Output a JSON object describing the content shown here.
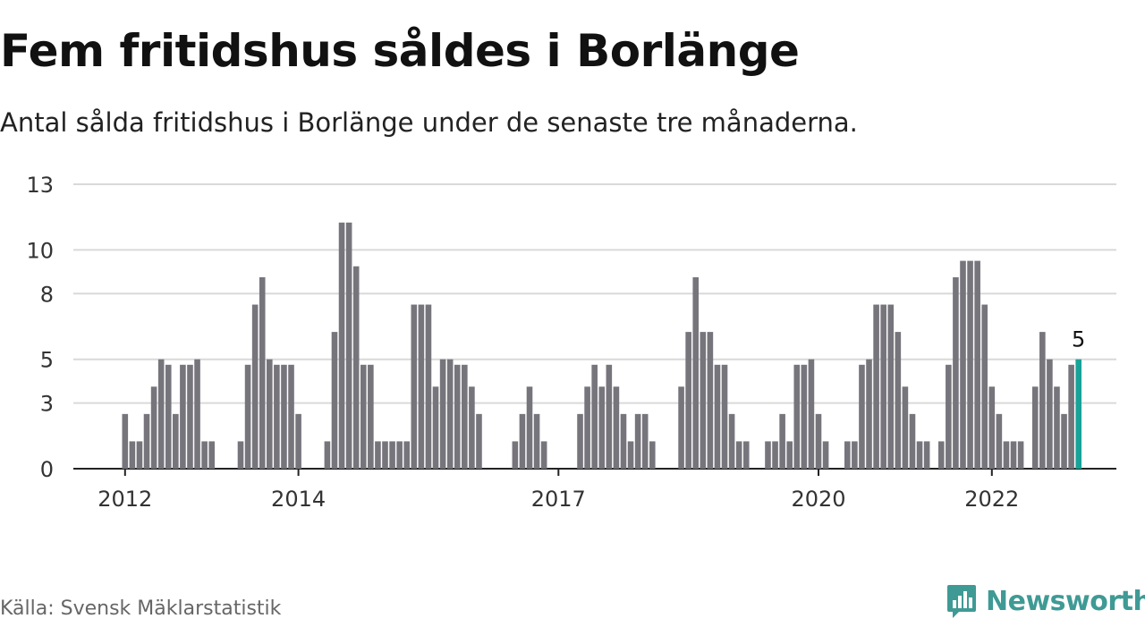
{
  "title": "Fem fritidshus såldes i Borlänge",
  "subtitle": "Antal sålda fritidshus i Borlänge under de senaste tre månaderna.",
  "source": "Källa: Svensk Mäklarstatistik",
  "brand": "Newsworthy",
  "colors": {
    "bar": "#77757c",
    "highlight": "#17a398",
    "grid": "#d9d9d9",
    "axis": "#222222",
    "brand": "#3f9a95"
  },
  "chart_data": {
    "type": "bar",
    "ylim": [
      0,
      13
    ],
    "yticks": [
      0,
      3,
      5,
      8,
      10,
      13
    ],
    "xticks": [
      {
        "label": "2012",
        "index": 0
      },
      {
        "label": "2014",
        "index": 24
      },
      {
        "label": "2017",
        "index": 60
      },
      {
        "label": "2020",
        "index": 96
      },
      {
        "label": "2022",
        "index": 120
      }
    ],
    "values": [
      2.5,
      1.25,
      1.25,
      2.5,
      3.75,
      5,
      4.75,
      2.5,
      4.75,
      4.75,
      5,
      1.25,
      1.25,
      null,
      null,
      null,
      1.25,
      4.75,
      7.5,
      8.75,
      5,
      4.75,
      4.75,
      4.75,
      2.5,
      null,
      null,
      null,
      1.25,
      6.25,
      11.25,
      11.25,
      9.25,
      4.75,
      4.75,
      1.25,
      1.25,
      1.25,
      1.25,
      1.25,
      7.5,
      7.5,
      7.5,
      3.75,
      5,
      5,
      4.75,
      4.75,
      3.75,
      2.5,
      null,
      null,
      null,
      null,
      1.25,
      2.5,
      3.75,
      2.5,
      1.25,
      null,
      null,
      null,
      null,
      2.5,
      3.75,
      4.75,
      3.75,
      4.75,
      3.75,
      2.5,
      1.25,
      2.5,
      2.5,
      1.25,
      null,
      null,
      null,
      3.75,
      6.25,
      8.75,
      6.25,
      6.25,
      4.75,
      4.75,
      2.5,
      1.25,
      1.25,
      null,
      null,
      1.25,
      1.25,
      2.5,
      1.25,
      4.75,
      4.75,
      5,
      2.5,
      1.25,
      null,
      null,
      1.25,
      1.25,
      4.75,
      5,
      7.5,
      7.5,
      7.5,
      6.25,
      3.75,
      2.5,
      1.25,
      1.25,
      null,
      1.25,
      4.75,
      8.75,
      9.5,
      9.5,
      9.5,
      7.5,
      3.75,
      2.5,
      1.25,
      1.25,
      1.25,
      null,
      3.75,
      6.25,
      5,
      3.75,
      2.5,
      4.75,
      5
    ],
    "highlight_label": "5"
  }
}
